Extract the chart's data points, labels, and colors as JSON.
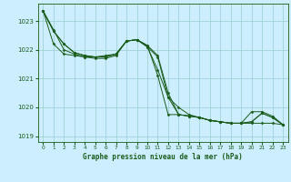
{
  "background_color": "#cceeff",
  "grid_color": "#99cccc",
  "line_color": "#1a5c1a",
  "marker_color": "#1a5c1a",
  "xlabel": "Graphe pression niveau de la mer (hPa)",
  "xlabel_color": "#1a5c1a",
  "tick_color": "#1a5c1a",
  "ylim": [
    1018.8,
    1023.6
  ],
  "xlim": [
    -0.5,
    23.5
  ],
  "yticks": [
    1019,
    1020,
    1021,
    1022,
    1023
  ],
  "xticks": [
    0,
    1,
    2,
    3,
    4,
    5,
    6,
    7,
    8,
    9,
    10,
    11,
    12,
    13,
    14,
    15,
    16,
    17,
    18,
    19,
    20,
    21,
    22,
    23
  ],
  "series": [
    [
      1023.35,
      1022.7,
      1022.0,
      1021.85,
      1021.75,
      1021.75,
      1021.8,
      1021.85,
      1022.3,
      1022.35,
      1022.15,
      1021.1,
      1019.75,
      1019.75,
      1019.7,
      1019.65,
      1019.55,
      1019.5,
      1019.45,
      1019.45,
      1019.5,
      1019.8,
      1019.65,
      1019.4
    ],
    [
      1023.35,
      1022.65,
      1022.2,
      1021.9,
      1021.8,
      1021.75,
      1021.75,
      1021.85,
      1022.3,
      1022.35,
      1022.1,
      1021.75,
      1020.35,
      1019.75,
      1019.7,
      1019.65,
      1019.55,
      1019.5,
      1019.45,
      1019.45,
      1019.5,
      1019.8,
      1019.65,
      1019.4
    ],
    [
      1023.35,
      1022.65,
      1022.2,
      1021.9,
      1021.8,
      1021.75,
      1021.75,
      1021.85,
      1022.3,
      1022.35,
      1022.1,
      1021.3,
      1020.35,
      1020.0,
      1019.75,
      1019.65,
      1019.55,
      1019.5,
      1019.45,
      1019.45,
      1019.85,
      1019.85,
      1019.7,
      1019.4
    ],
    [
      1023.35,
      1022.2,
      1021.85,
      1021.8,
      1021.75,
      1021.7,
      1021.7,
      1021.8,
      1022.3,
      1022.35,
      1022.15,
      1021.8,
      1020.5,
      1019.75,
      1019.7,
      1019.65,
      1019.55,
      1019.5,
      1019.45,
      1019.45,
      1019.45,
      1019.45,
      1019.45,
      1019.4
    ]
  ]
}
